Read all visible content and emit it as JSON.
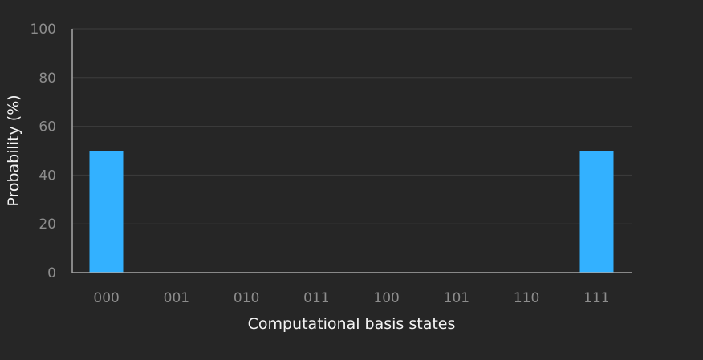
{
  "chart_data": {
    "type": "bar",
    "categories": [
      "000",
      "001",
      "010",
      "011",
      "100",
      "101",
      "110",
      "111"
    ],
    "values": [
      50,
      0,
      0,
      0,
      0,
      0,
      0,
      50
    ],
    "xlabel": "Computational basis states",
    "ylabel": "Probability (%)",
    "ylim": [
      0,
      100
    ],
    "yticks": [
      0,
      20,
      40,
      60,
      80,
      100
    ],
    "grid": true,
    "bar_color": "#33b1ff",
    "background_color": "#262626",
    "grid_color": "#3d3d3d",
    "axis_color": "#a8a8a8",
    "tick_label_color": "#8d8d8d",
    "axis_title_color": "#f4f4f4"
  }
}
